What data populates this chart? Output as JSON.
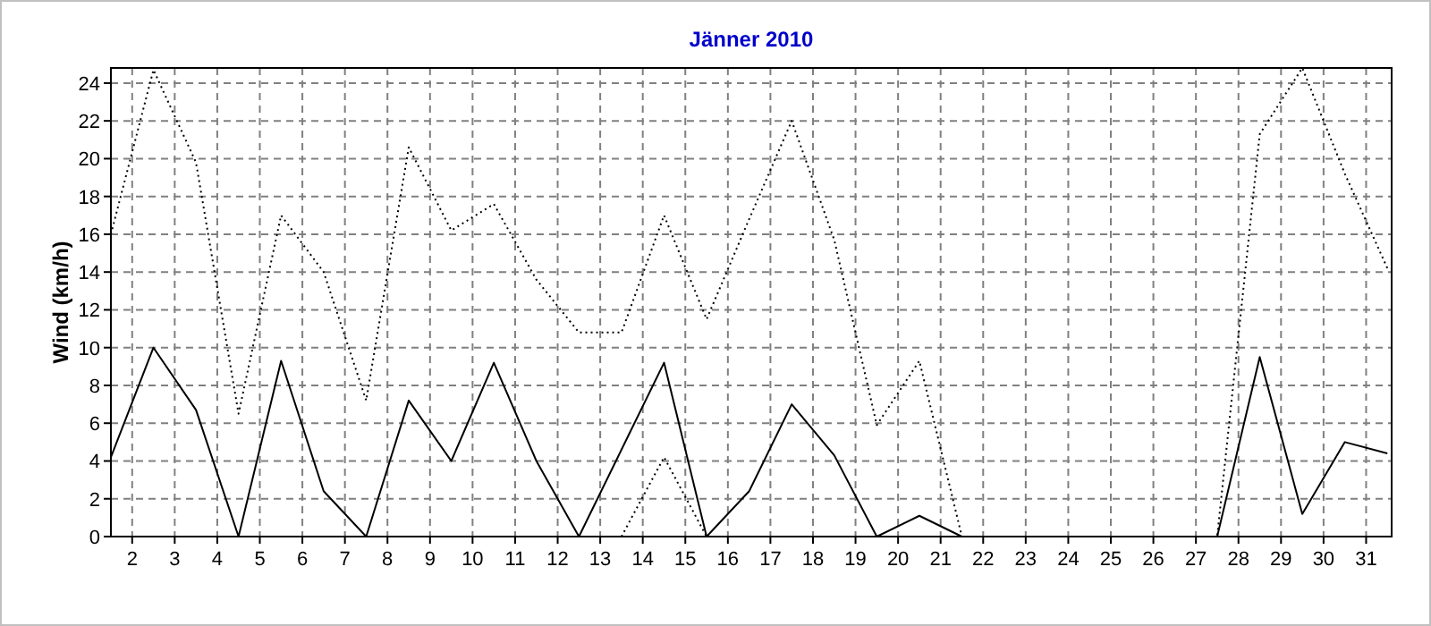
{
  "chart_data": {
    "type": "line",
    "title": "Jänner 2010",
    "ylabel": "Wind  (km/h)",
    "x": [
      1.5,
      2.5,
      3.5,
      4.5,
      5.5,
      6.5,
      7.5,
      8.5,
      9.5,
      10.5,
      11.5,
      12.5,
      13.5,
      14.5,
      15.5,
      16.5,
      17.5,
      18.5,
      19.5,
      20.5,
      21.5,
      22.5,
      23.5,
      24.5,
      25.5,
      26.5,
      27.5,
      28.5,
      29.5,
      30.5,
      31.5
    ],
    "series": [
      {
        "color": "#000000",
        "line_style": "solid",
        "values": [
          4.2,
          10,
          6.7,
          0,
          9.3,
          2.4,
          0,
          7.2,
          4,
          9.2,
          4,
          0,
          4.6,
          9.2,
          0,
          2.4,
          7,
          4.3,
          0,
          1.1,
          0,
          0,
          0,
          0,
          0,
          0,
          0,
          9.5,
          1.2,
          5,
          4.4
        ]
      },
      {
        "color": "#000000",
        "line_style": "dotted",
        "values": [
          16,
          24.7,
          19.8,
          6.5,
          17,
          14,
          7.2,
          20.6,
          16.2,
          17.6,
          13.6,
          10.8,
          10.8,
          17,
          11.5,
          16.8,
          22,
          15.7,
          5.9,
          9.3,
          0,
          0,
          0,
          0,
          0,
          0,
          0,
          21.3,
          24.8,
          19.2,
          14.2
        ]
      },
      {
        "color": "#000000",
        "line_style": "dotted",
        "values": [
          null,
          null,
          null,
          null,
          null,
          null,
          null,
          null,
          null,
          null,
          null,
          null,
          0,
          4.2,
          0,
          null,
          null,
          null,
          null,
          null,
          null,
          null,
          null,
          null,
          null,
          null,
          null,
          null,
          null,
          null,
          null
        ]
      }
    ],
    "xlim": [
      1.5,
      31.6
    ],
    "xticks": [
      2,
      3,
      4,
      5,
      6,
      7,
      8,
      9,
      10,
      11,
      12,
      13,
      14,
      15,
      16,
      17,
      18,
      19,
      20,
      21,
      22,
      23,
      24,
      25,
      26,
      27,
      28,
      29,
      30,
      31
    ],
    "ylim": [
      0,
      24.8
    ],
    "yticks": [
      0,
      2,
      4,
      6,
      8,
      10,
      12,
      14,
      16,
      18,
      20,
      22,
      24
    ],
    "grid": true,
    "marker": "none"
  }
}
